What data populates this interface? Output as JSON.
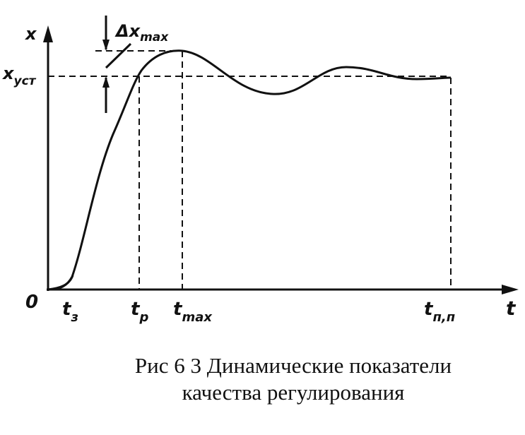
{
  "axes": {
    "y_label": "x",
    "x_label": "t",
    "origin": "0"
  },
  "labels": {
    "x_ust": {
      "main": "x",
      "sub": "уст"
    },
    "delta_x_max": {
      "main": "Δx",
      "sub": "max"
    },
    "t_z": {
      "main": "t",
      "sub": "з"
    },
    "t_p": {
      "main": "t",
      "sub": "p"
    },
    "t_max": {
      "main": "t",
      "sub": "max"
    },
    "t_pp": {
      "main": "t",
      "sub": "п,п"
    }
  },
  "caption": [
    "Рис 6 3 Динамические показатели",
    "качества регулирования"
  ]
}
